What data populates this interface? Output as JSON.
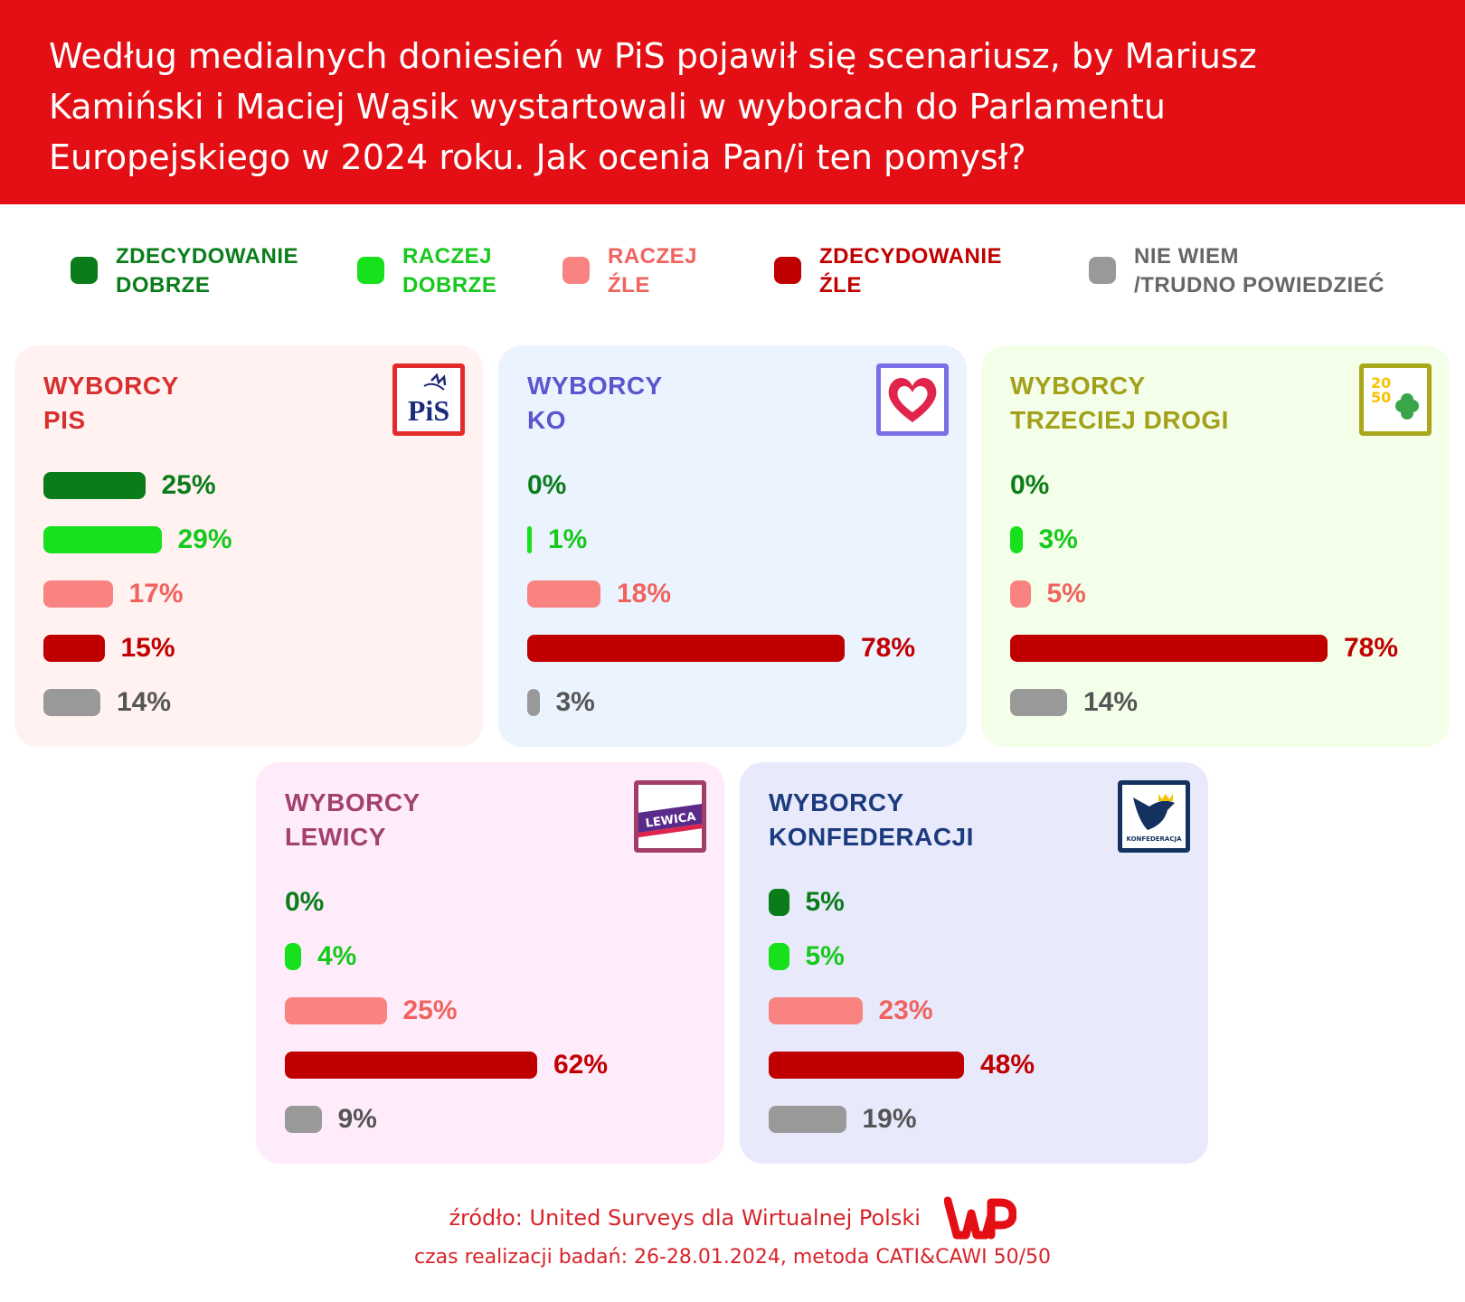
{
  "header": {
    "title": "Według medialnych doniesień w PiS pojawił się scenariusz, by Mariusz Kamiński i Maciej Wąsik wystartowali w wyborach do Parlamentu Europejskiego w 2024 roku. Jak ocenia Pan/i ten pomysł?"
  },
  "legend": [
    {
      "label": "ZDECYDOWANIE\nDOBRZE",
      "color": "#0a7d1a"
    },
    {
      "label": "RACZEJ\nDOBRZE",
      "color": "#17e01d"
    },
    {
      "label": "RACZEJ\nŹLE",
      "color": "#f88380"
    },
    {
      "label": "ZDECYDOWANIE\nŹLE",
      "color": "#c00000"
    },
    {
      "label": "NIE WIEM\n/TRUDNO POWIEDZIEĆ",
      "color": "#999999"
    }
  ],
  "chart_data": {
    "type": "bar",
    "categories": [
      "ZDECYDOWANIE DOBRZE",
      "RACZEJ DOBRZE",
      "RACZEJ ŹLE",
      "ZDECYDOWANIE ŹLE",
      "NIE WIEM /TRUDNO POWIEDZIEĆ"
    ],
    "value_labels": [
      "%",
      "%",
      "%",
      "%",
      "%"
    ],
    "series": [
      {
        "name_lines": [
          "WYBORCY",
          "PIS"
        ],
        "values": [
          25,
          29,
          17,
          15,
          14
        ],
        "title_color": "#d82f2f",
        "bg": "#fff2f1",
        "logo": "pis-logo",
        "logo_text": "PiS",
        "logo_color": "#e32b2b"
      },
      {
        "name_lines": [
          "WYBORCY",
          "KO"
        ],
        "values": [
          0,
          1,
          18,
          78,
          3
        ],
        "title_color": "#5a56d0",
        "bg": "#ebf3ff",
        "logo": "ko-heart-logo",
        "logo_text": "",
        "logo_color": "#7a6fe6"
      },
      {
        "name_lines": [
          "WYBORCY",
          "TRZECIEJ DROGI"
        ],
        "values": [
          0,
          3,
          5,
          78,
          14
        ],
        "title_color": "#a3a01b",
        "bg": "#f4ffe9",
        "logo": "trzecia-droga-logo",
        "logo_text": "",
        "logo_color": "#a8a81a"
      },
      {
        "name_lines": [
          "WYBORCY",
          "LEWICY"
        ],
        "values": [
          0,
          4,
          25,
          62,
          9
        ],
        "title_color": "#a2416f",
        "bg": "#ffecfb",
        "logo": "lewica-logo",
        "logo_text": "LEWICA",
        "logo_color": "#a23d6b"
      },
      {
        "name_lines": [
          "WYBORCY",
          "KONFEDERACJI"
        ],
        "values": [
          5,
          5,
          23,
          48,
          19
        ],
        "title_color": "#1c3b7e",
        "bg": "#e8eafc",
        "logo": "konfederacja-logo",
        "logo_text": "KONFEDERACJA",
        "logo_color": "#13325f"
      }
    ],
    "colors": [
      "#0a7d1a",
      "#17e01d",
      "#f88380",
      "#c00000",
      "#999999"
    ],
    "label_colors": [
      "#0a7d1a",
      "#17c81d",
      "#f0635f",
      "#c00000",
      "#555555"
    ],
    "xlim": [
      0,
      100
    ]
  },
  "footer": {
    "source": "źródło: United Surveys dla Wirtualnej Polski",
    "method": "czas realizacji badań: 26-28.01.2024, metoda CATI&CAWI 50/50",
    "brand": "WP"
  }
}
